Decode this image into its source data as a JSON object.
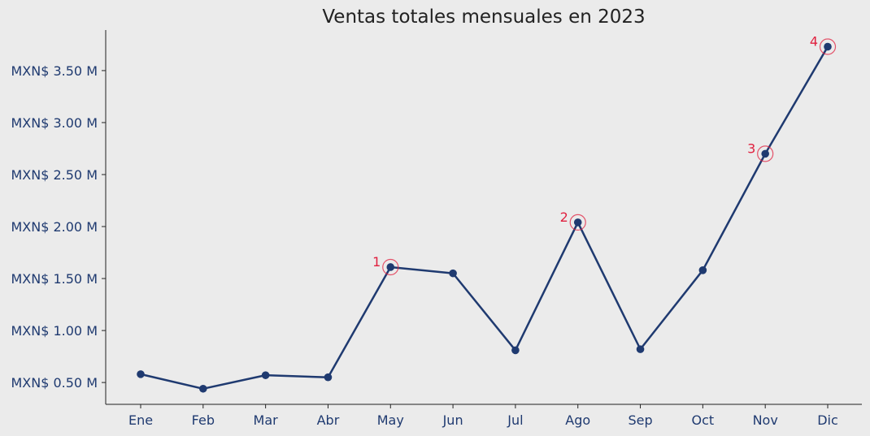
{
  "chart_data": {
    "type": "line",
    "title": "Ventas totales mensuales en 2023",
    "xlabel": "",
    "ylabel": "",
    "categories": [
      "Ene",
      "Feb",
      "Mar",
      "Abr",
      "May",
      "Jun",
      "Jul",
      "Ago",
      "Sep",
      "Oct",
      "Nov",
      "Dic"
    ],
    "series": [
      {
        "values": [
          0.58,
          0.44,
          0.57,
          0.55,
          1.61,
          1.55,
          0.81,
          2.04,
          0.82,
          1.58,
          2.7,
          3.73
        ]
      }
    ],
    "y_ticks": [
      {
        "value": 0.5,
        "label": "MXN$ 0.50 M"
      },
      {
        "value": 1.0,
        "label": "MXN$ 1.00 M"
      },
      {
        "value": 1.5,
        "label": "MXN$ 1.50 M"
      },
      {
        "value": 2.0,
        "label": "MXN$ 2.00 M"
      },
      {
        "value": 2.5,
        "label": "MXN$ 2.50 M"
      },
      {
        "value": 3.0,
        "label": "MXN$ 3.00 M"
      },
      {
        "value": 3.5,
        "label": "MXN$ 3.50 M"
      }
    ],
    "ylim": [
      0.29,
      3.89
    ],
    "grid": false,
    "annotations": [
      {
        "label": "1",
        "category": "May"
      },
      {
        "label": "2",
        "category": "Ago"
      },
      {
        "label": "3",
        "category": "Nov"
      },
      {
        "label": "4",
        "category": "Dic"
      }
    ],
    "colors": {
      "line": "#1f3a70",
      "annotation": "#e0203f",
      "background": "#ebebeb",
      "axis": "#222222"
    }
  }
}
